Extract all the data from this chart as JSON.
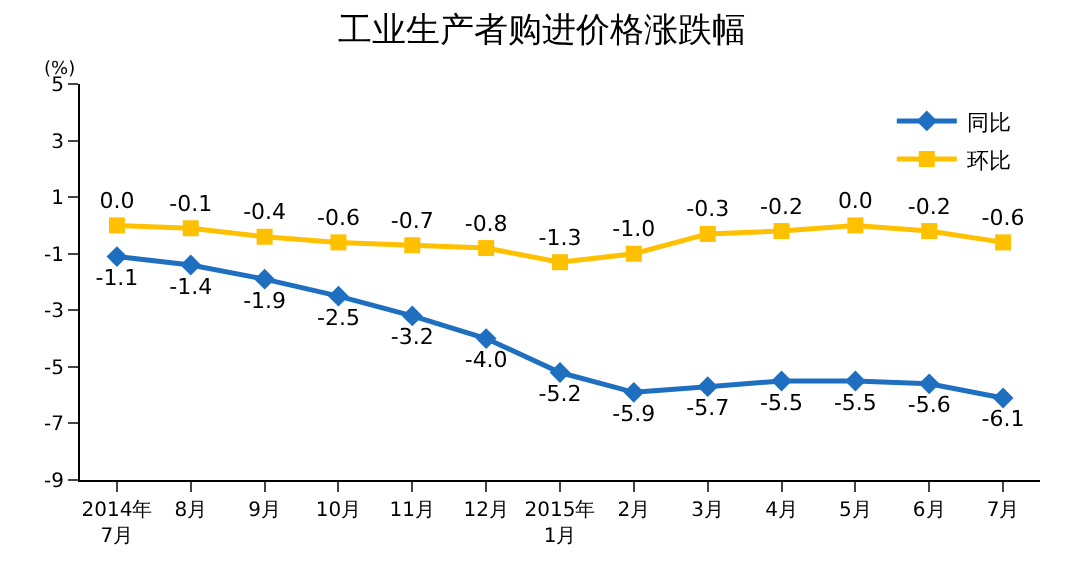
{
  "chart_data": {
    "type": "line",
    "title": "工业生产者购进价格涨跌幅",
    "ylabel": "(%)",
    "categories": [
      "2014年\n7月",
      "8月",
      "9月",
      "10月",
      "11月",
      "12月",
      "2015年\n1月",
      "2月",
      "3月",
      "4月",
      "5月",
      "6月",
      "7月"
    ],
    "series": [
      {
        "name": "同比",
        "color": "#1f6fc0",
        "marker": "diamond",
        "values": [
          -1.1,
          -1.4,
          -1.9,
          -2.5,
          -3.2,
          -4.0,
          -5.2,
          -5.9,
          -5.7,
          -5.5,
          -5.5,
          -5.6,
          -6.1
        ],
        "value_labels": [
          "-1.1",
          "-1.4",
          "-1.9",
          "-2.5",
          "-3.2",
          "-4.0",
          "-5.2",
          "-5.9",
          "-5.7",
          "-5.5",
          "-5.5",
          "-5.6",
          "-6.1"
        ]
      },
      {
        "name": "环比",
        "color": "#ffc000",
        "marker": "square",
        "values": [
          0.0,
          -0.1,
          -0.4,
          -0.6,
          -0.7,
          -0.8,
          -1.3,
          -1.0,
          -0.3,
          -0.2,
          0.0,
          -0.2,
          -0.6
        ],
        "value_labels": [
          "0.0",
          "-0.1",
          "-0.4",
          "-0.6",
          "-0.7",
          "-0.8",
          "-1.3",
          "-1.0",
          "-0.3",
          "-0.2",
          "0.0",
          "-0.2",
          "-0.6"
        ]
      }
    ],
    "ylim": [
      -9,
      5
    ],
    "yticks": [
      -9,
      -7,
      -5,
      -3,
      -1,
      1,
      3,
      5
    ],
    "legend": "top right",
    "line_style": "solid"
  }
}
